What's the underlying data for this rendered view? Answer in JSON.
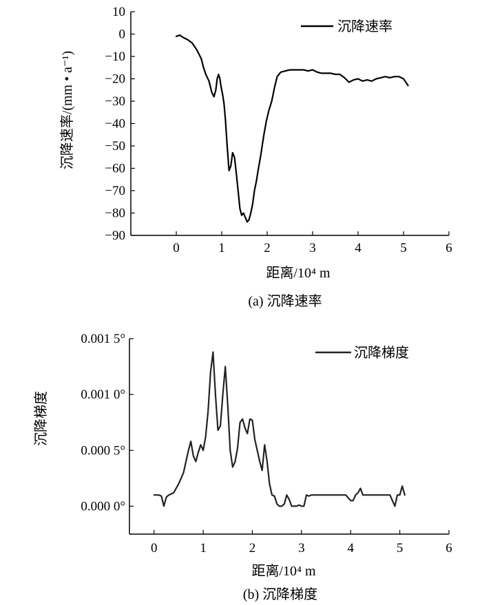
{
  "chart_data": [
    {
      "type": "line",
      "caption": "(a) 沉降速率",
      "xlabel": "距离/10⁴ m",
      "ylabel": "沉降速率/(mm • a⁻¹)",
      "xlim": [
        -1,
        6
      ],
      "ylim": [
        -90,
        10
      ],
      "xticks": [
        0,
        1,
        2,
        3,
        4,
        5,
        6
      ],
      "yticks": [
        10,
        0,
        -10,
        -20,
        -30,
        -40,
        -50,
        -60,
        -70,
        -80,
        -90
      ],
      "ytick_labels": [
        "10",
        "0",
        "−10",
        "−20",
        "−30",
        "−40",
        "−50",
        "−60",
        "−70",
        "−80",
        "−90"
      ],
      "grid": false,
      "legend_position": "top-right",
      "series": [
        {
          "name": "沉降速率",
          "color": "#000000",
          "x": [
            0,
            0.08,
            0.15,
            0.25,
            0.35,
            0.45,
            0.55,
            0.6,
            0.65,
            0.72,
            0.78,
            0.83,
            0.87,
            0.9,
            0.93,
            0.96,
            0.99,
            1.02,
            1.05,
            1.08,
            1.12,
            1.16,
            1.2,
            1.24,
            1.28,
            1.32,
            1.36,
            1.4,
            1.44,
            1.48,
            1.52,
            1.56,
            1.6,
            1.64,
            1.68,
            1.72,
            1.76,
            1.8,
            1.86,
            1.92,
            1.98,
            2.04,
            2.1,
            2.16,
            2.22,
            2.3,
            2.4,
            2.5,
            2.6,
            2.7,
            2.8,
            2.9,
            3.0,
            3.1,
            3.2,
            3.3,
            3.4,
            3.5,
            3.6,
            3.7,
            3.8,
            3.9,
            4.0,
            4.1,
            4.2,
            4.3,
            4.4,
            4.5,
            4.6,
            4.7,
            4.8,
            4.9,
            5.0,
            5.1
          ],
          "values": [
            -1,
            -0.5,
            -1.5,
            -2.5,
            -4,
            -7,
            -11,
            -15,
            -18,
            -21,
            -26,
            -28,
            -25,
            -20,
            -18,
            -20,
            -24,
            -27,
            -31,
            -38,
            -50,
            -61,
            -59,
            -53,
            -55,
            -62,
            -70,
            -78,
            -81,
            -80,
            -82,
            -84,
            -83,
            -80,
            -76,
            -70,
            -66,
            -61,
            -54,
            -46,
            -39,
            -34,
            -30,
            -24,
            -19,
            -17,
            -16.5,
            -16,
            -16,
            -16,
            -16,
            -16.5,
            -16,
            -17,
            -17.5,
            -17.5,
            -17.5,
            -18,
            -18,
            -19.5,
            -21.5,
            -20.5,
            -20,
            -21,
            -20.5,
            -21,
            -20,
            -19.5,
            -19,
            -19.5,
            -19,
            -19,
            -20,
            -23
          ]
        }
      ]
    },
    {
      "type": "line",
      "caption": "(b) 沉降梯度",
      "xlabel": "距离/10⁴ m",
      "ylabel": "沉降梯度",
      "xlim": [
        -0.5,
        6
      ],
      "ylim": [
        -0.00025,
        0.0015
      ],
      "xticks": [
        0,
        1,
        2,
        3,
        4,
        5,
        6
      ],
      "yticks": [
        0,
        0.0005,
        0.001,
        0.0015
      ],
      "ytick_labels": [
        "0.000 0°",
        "0.000 5°",
        "0.001 0°",
        "0.001 5°"
      ],
      "grid": false,
      "legend_position": "top-right",
      "series": [
        {
          "name": "沉降梯度",
          "color": "#222222",
          "x": [
            0,
            0.1,
            0.15,
            0.2,
            0.25,
            0.3,
            0.4,
            0.5,
            0.55,
            0.6,
            0.65,
            0.7,
            0.75,
            0.8,
            0.85,
            0.9,
            0.95,
            1.0,
            1.05,
            1.1,
            1.15,
            1.2,
            1.25,
            1.3,
            1.35,
            1.4,
            1.45,
            1.5,
            1.55,
            1.6,
            1.65,
            1.7,
            1.75,
            1.8,
            1.85,
            1.9,
            1.95,
            2.0,
            2.05,
            2.1,
            2.15,
            2.2,
            2.25,
            2.3,
            2.35,
            2.4,
            2.45,
            2.5,
            2.55,
            2.6,
            2.65,
            2.7,
            2.75,
            2.8,
            2.85,
            2.9,
            2.95,
            3.0,
            3.05,
            3.1,
            3.15,
            3.2,
            3.3,
            3.4,
            3.5,
            3.6,
            3.7,
            3.8,
            3.9,
            4.0,
            4.05,
            4.1,
            4.15,
            4.2,
            4.25,
            4.3,
            4.4,
            4.5,
            4.6,
            4.7,
            4.8,
            4.85,
            4.9,
            4.95,
            5.0,
            5.05,
            5.1
          ],
          "values": [
            0.0001,
            0.0001,
            9e-05,
            0.0,
            8e-05,
            0.0001,
            0.00012,
            0.0002,
            0.00025,
            0.0003,
            0.0004,
            0.0005,
            0.00058,
            0.00045,
            0.0004,
            0.00048,
            0.00055,
            0.0005,
            0.00062,
            0.00085,
            0.0012,
            0.00138,
            0.001,
            0.00068,
            0.00072,
            0.001,
            0.00125,
            0.0009,
            0.0005,
            0.00035,
            0.0004,
            0.00052,
            0.00075,
            0.00078,
            0.0007,
            0.00065,
            0.00078,
            0.00077,
            0.0006,
            0.0005,
            0.0004,
            0.00032,
            0.00055,
            0.0004,
            0.0002,
            0.0001,
            9e-05,
            2e-05,
            0.0,
            0.0,
            2e-05,
            0.0001,
            6e-05,
            0.0,
            0.0,
            0.0,
            1e-05,
            0.0,
            0.0,
            0.0001,
            9e-05,
            0.0001,
            0.0001,
            0.0001,
            0.0001,
            0.0001,
            0.0001,
            0.0001,
            0.0001,
            5e-05,
            5e-05,
            0.0001,
            0.00012,
            0.00016,
            0.0001,
            0.0001,
            0.0001,
            0.0001,
            0.0001,
            0.0001,
            0.0001,
            5e-05,
            0.0,
            0.0001,
            0.0001,
            0.00018,
            0.0001
          ]
        }
      ]
    }
  ]
}
